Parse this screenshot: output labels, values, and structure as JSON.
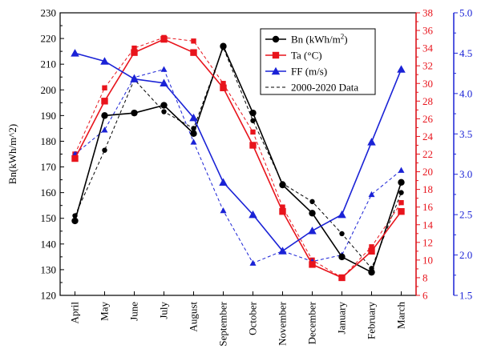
{
  "chart_data": {
    "type": "line",
    "categories": [
      "April",
      "May",
      "June",
      "July",
      "August",
      "September",
      "October",
      "November",
      "December",
      "January",
      "February",
      "March"
    ],
    "ylabel": "Bn(kWh/m^2)",
    "axes": {
      "left": {
        "min": 120,
        "max": 230,
        "step": 10,
        "color": "#000000",
        "ticks": [
          "120",
          "130",
          "140",
          "150",
          "160",
          "170",
          "180",
          "190",
          "200",
          "210",
          "220",
          "230"
        ]
      },
      "right1": {
        "min": 6,
        "max": 38,
        "step": 2,
        "color": "#e8141c",
        "ticks": [
          "6",
          "8",
          "10",
          "12",
          "14",
          "16",
          "18",
          "20",
          "22",
          "24",
          "26",
          "28",
          "30",
          "32",
          "34",
          "36",
          "38"
        ]
      },
      "right2": {
        "min": 1.5,
        "max": 5.0,
        "step": 0.5,
        "color": "#1a22d6",
        "ticks": [
          "1.5",
          "2.0",
          "2.5",
          "3.0",
          "3.5",
          "4.0",
          "4.5",
          "5.0"
        ]
      }
    },
    "series": [
      {
        "name": "Bn (kWh/m",
        "name_sup": "2",
        "name_end": ")",
        "axis": "left",
        "color": "#000000",
        "marker": "circle",
        "dash": false,
        "values": [
          149,
          190,
          191,
          194,
          183,
          217,
          191,
          163,
          152,
          135,
          129,
          164
        ]
      },
      {
        "axis": "left",
        "color": "#000000",
        "marker": "circle",
        "dash": true,
        "values": [
          151,
          176.5,
          204,
          191.5,
          185,
          216.5,
          188,
          163.5,
          156.5,
          144,
          130.5,
          160
        ]
      },
      {
        "name": "Ta (°C)",
        "axis": "right1",
        "color": "#e8141c",
        "marker": "square",
        "dash": false,
        "values": [
          21.5,
          28,
          33.5,
          35,
          33.5,
          29.5,
          23,
          15.5,
          9.5,
          8,
          11,
          15.5
        ]
      },
      {
        "axis": "right1",
        "color": "#e8141c",
        "marker": "square",
        "dash": true,
        "values": [
          22,
          29.5,
          34,
          35.2,
          34.8,
          30,
          24.5,
          16,
          10,
          8,
          11.5,
          16.5
        ]
      },
      {
        "name": "FF (m/s)",
        "axis": "right2",
        "color": "#1a22d6",
        "marker": "triangle",
        "dash": false,
        "values": [
          4.5,
          4.4,
          4.18,
          4.13,
          3.7,
          2.9,
          2.5,
          2.05,
          2.3,
          2.5,
          3.4,
          4.3
        ]
      },
      {
        "axis": "right2",
        "color": "#1a22d6",
        "marker": "triangle",
        "dash": true,
        "values": [
          3.25,
          3.55,
          4.2,
          4.3,
          3.4,
          2.55,
          1.9,
          2.05,
          1.92,
          2.0,
          2.75,
          3.05
        ]
      }
    ],
    "legend": {
      "position": "top-right",
      "dashed_label": "2000-2020 Data"
    }
  }
}
